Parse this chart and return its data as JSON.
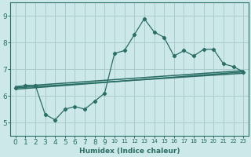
{
  "xlabel": "Humidex (Indice chaleur)",
  "bg_color": "#cce8e8",
  "grid_color": "#aacccc",
  "line_color": "#2a6e65",
  "xlim": [
    -0.5,
    23.5
  ],
  "ylim": [
    4.5,
    9.5
  ],
  "xticks": [
    0,
    1,
    2,
    3,
    4,
    5,
    6,
    7,
    8,
    9,
    10,
    11,
    12,
    13,
    14,
    15,
    16,
    17,
    18,
    19,
    20,
    21,
    22,
    23
  ],
  "yticks": [
    5,
    6,
    7,
    8,
    9
  ],
  "curve_x": [
    0,
    1,
    2,
    3,
    4,
    5,
    6,
    7,
    8,
    9,
    10,
    11,
    12,
    13,
    14,
    15,
    16,
    17,
    18,
    19,
    20,
    21,
    22,
    23
  ],
  "curve_y": [
    6.3,
    6.4,
    6.4,
    5.3,
    5.1,
    5.5,
    5.6,
    5.5,
    5.8,
    6.1,
    7.6,
    7.7,
    8.3,
    8.9,
    8.4,
    8.2,
    7.5,
    7.7,
    7.5,
    7.75,
    7.75,
    7.2,
    7.1,
    6.9
  ],
  "trend1_x": [
    0,
    23
  ],
  "trend1_y": [
    6.3,
    6.85
  ],
  "trend2_x": [
    0,
    23
  ],
  "trend2_y": [
    6.35,
    6.95
  ],
  "trend3_x": [
    0,
    23
  ],
  "trend3_y": [
    6.25,
    6.9
  ]
}
